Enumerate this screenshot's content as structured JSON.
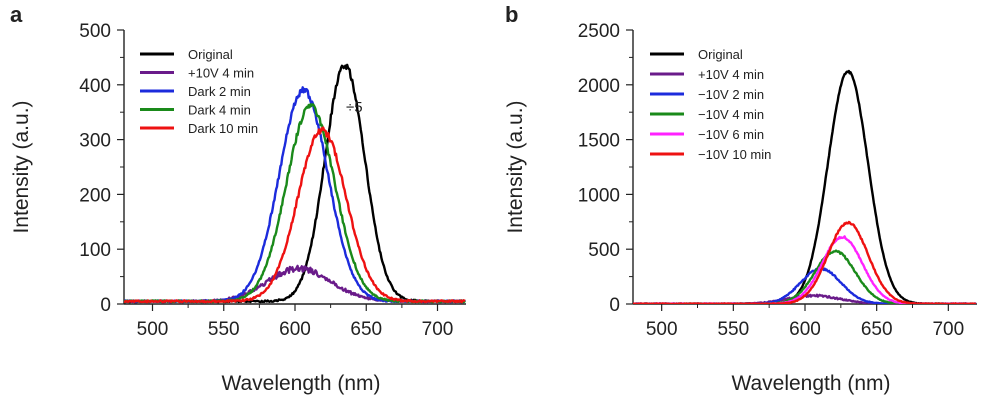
{
  "chart_data": [
    {
      "panel": "a",
      "type": "line",
      "xlabel": "Wavelength (nm)",
      "ylabel": "Intensity (a.u.)",
      "xlim": [
        480,
        720
      ],
      "ylim": [
        0,
        500
      ],
      "xticks": [
        500,
        550,
        600,
        650,
        700
      ],
      "yticks": [
        0,
        100,
        200,
        300,
        400,
        500
      ],
      "legend_position": "top-left",
      "annotation": "÷5",
      "series": [
        {
          "name": "Original",
          "color": "#000000",
          "peak": 635,
          "amplitude": 430,
          "width": 14,
          "baseline": 5
        },
        {
          "name": "+10V 4 min",
          "color": "#6a1b8a",
          "peak": 603,
          "amplitude": 60,
          "width": 22,
          "baseline": 5
        },
        {
          "name": "Dark 2 min",
          "color": "#1c2bdc",
          "peak": 606,
          "amplitude": 385,
          "width": 17,
          "baseline": 5
        },
        {
          "name": "Dark 4 min",
          "color": "#1a8a1a",
          "peak": 611,
          "amplitude": 355,
          "width": 17,
          "baseline": 5
        },
        {
          "name": "Dark 10 min",
          "color": "#ee1111",
          "peak": 619,
          "amplitude": 312,
          "width": 17,
          "baseline": 5
        }
      ]
    },
    {
      "panel": "b",
      "type": "line",
      "xlabel": "Wavelength (nm)",
      "ylabel": "Intensity (a.u.)",
      "xlim": [
        480,
        720
      ],
      "ylim": [
        0,
        2500
      ],
      "xticks": [
        500,
        550,
        600,
        650,
        700
      ],
      "yticks": [
        0,
        500,
        1000,
        1500,
        2000,
        2500
      ],
      "legend_position": "top-left",
      "series": [
        {
          "name": "Original",
          "color": "#000000",
          "peak": 630,
          "amplitude": 2120,
          "width": 14,
          "baseline": 2
        },
        {
          "name": "+10V 4 min",
          "color": "#6a1b8a",
          "peak": 606,
          "amplitude": 75,
          "width": 18,
          "baseline": 2
        },
        {
          "name": "−10V 2 min",
          "color": "#1c2bdc",
          "peak": 611,
          "amplitude": 320,
          "width": 14,
          "baseline": 2
        },
        {
          "name": "−10V 4 min",
          "color": "#1a8a1a",
          "peak": 621,
          "amplitude": 480,
          "width": 14,
          "baseline": 2
        },
        {
          "name": "−10V 6 min",
          "color": "#ff22ff",
          "peak": 626,
          "amplitude": 610,
          "width": 14,
          "baseline": 2
        },
        {
          "name": "−10V 10 min",
          "color": "#ee1111",
          "peak": 630,
          "amplitude": 740,
          "width": 14,
          "baseline": 2
        }
      ]
    }
  ]
}
